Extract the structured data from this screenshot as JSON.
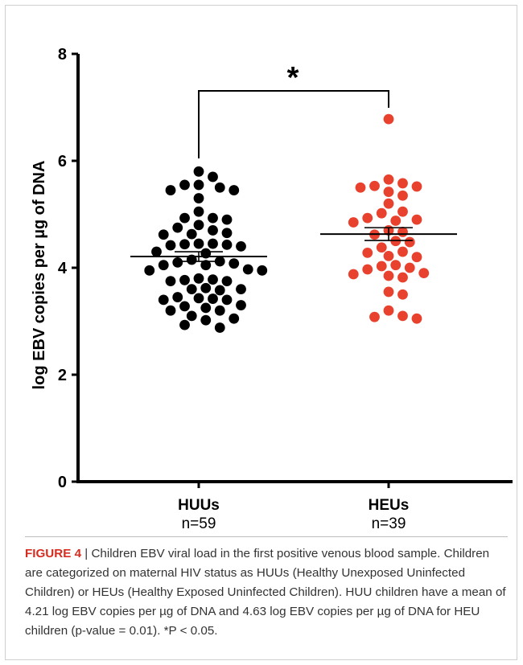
{
  "chart_data": {
    "type": "scatter",
    "ylabel": "log EBV copies per µg of DNA",
    "ylim": [
      0,
      8
    ],
    "yticks": [
      0,
      2,
      4,
      6,
      8
    ],
    "significance": "*",
    "groups": [
      {
        "name": "HUUs",
        "n_label": "n=59",
        "color": "#000000",
        "mean": 4.21,
        "sem": 0.09,
        "points": [
          {
            "dx": 0,
            "y": 5.8
          },
          {
            "dx": 0,
            "y": 5.7
          },
          {
            "dx": 0,
            "y": 5.55
          },
          {
            "dx": 0,
            "y": 5.5
          },
          {
            "dx": 0,
            "y": 5.45
          },
          {
            "dx": 0,
            "y": 5.45
          },
          {
            "dx": 0,
            "y": 5.3
          },
          {
            "dx": 0,
            "y": 5.05
          },
          {
            "dx": 0,
            "y": 4.93
          },
          {
            "dx": 0,
            "y": 4.93
          },
          {
            "dx": 0,
            "y": 4.9
          },
          {
            "dx": 0,
            "y": 4.8
          },
          {
            "dx": 0,
            "y": 4.75
          },
          {
            "dx": 0,
            "y": 4.7
          },
          {
            "dx": 0,
            "y": 4.65
          },
          {
            "dx": 0,
            "y": 4.63
          },
          {
            "dx": 0,
            "y": 4.62
          },
          {
            "dx": 0,
            "y": 4.45
          },
          {
            "dx": 0,
            "y": 4.45
          },
          {
            "dx": 0,
            "y": 4.44
          },
          {
            "dx": 0,
            "y": 4.43
          },
          {
            "dx": 0,
            "y": 4.42
          },
          {
            "dx": 0,
            "y": 4.4
          },
          {
            "dx": 0,
            "y": 4.3
          },
          {
            "dx": 0,
            "y": 4.27
          },
          {
            "dx": 0,
            "y": 4.15
          },
          {
            "dx": 0,
            "y": 4.12
          },
          {
            "dx": 0,
            "y": 4.1
          },
          {
            "dx": 0,
            "y": 4.08
          },
          {
            "dx": 0,
            "y": 4.05
          },
          {
            "dx": 0,
            "y": 4.05
          },
          {
            "dx": 0,
            "y": 3.97
          },
          {
            "dx": 0,
            "y": 3.95
          },
          {
            "dx": 0,
            "y": 3.95
          },
          {
            "dx": 0,
            "y": 3.8
          },
          {
            "dx": 0,
            "y": 3.78
          },
          {
            "dx": 0,
            "y": 3.77
          },
          {
            "dx": 0,
            "y": 3.75
          },
          {
            "dx": 0,
            "y": 3.75
          },
          {
            "dx": 0,
            "y": 3.62
          },
          {
            "dx": 0,
            "y": 3.6
          },
          {
            "dx": 0,
            "y": 3.6
          },
          {
            "dx": 0,
            "y": 3.58
          },
          {
            "dx": 0,
            "y": 3.45
          },
          {
            "dx": 0,
            "y": 3.43
          },
          {
            "dx": 0,
            "y": 3.42
          },
          {
            "dx": 0,
            "y": 3.4
          },
          {
            "dx": 0,
            "y": 3.4
          },
          {
            "dx": 0,
            "y": 3.3
          },
          {
            "dx": 0,
            "y": 3.28
          },
          {
            "dx": 0,
            "y": 3.25
          },
          {
            "dx": 0,
            "y": 3.2
          },
          {
            "dx": 0,
            "y": 3.2
          },
          {
            "dx": 0,
            "y": 3.1
          },
          {
            "dx": 0,
            "y": 3.05
          },
          {
            "dx": 0,
            "y": 3.02
          },
          {
            "dx": 0,
            "y": 2.93
          },
          {
            "dx": 0,
            "y": 2.88
          },
          {
            "dx": 0,
            "y": 5.55
          }
        ]
      },
      {
        "name": "HEUs",
        "n_label": "n=39",
        "color": "#e8412d",
        "mean": 4.63,
        "sem": 0.12,
        "points": [
          {
            "dx": 0,
            "y": 6.78
          },
          {
            "dx": 0,
            "y": 5.65
          },
          {
            "dx": 0,
            "y": 5.58
          },
          {
            "dx": 0,
            "y": 5.53
          },
          {
            "dx": 0,
            "y": 5.52
          },
          {
            "dx": 0,
            "y": 5.5
          },
          {
            "dx": 0,
            "y": 5.42
          },
          {
            "dx": 0,
            "y": 5.35
          },
          {
            "dx": 0,
            "y": 5.2
          },
          {
            "dx": 0,
            "y": 5.05
          },
          {
            "dx": 0,
            "y": 5.02
          },
          {
            "dx": 0,
            "y": 4.93
          },
          {
            "dx": 0,
            "y": 4.9
          },
          {
            "dx": 0,
            "y": 4.88
          },
          {
            "dx": 0,
            "y": 4.85
          },
          {
            "dx": 0,
            "y": 4.7
          },
          {
            "dx": 0,
            "y": 4.67
          },
          {
            "dx": 0,
            "y": 4.62
          },
          {
            "dx": 0,
            "y": 4.5
          },
          {
            "dx": 0,
            "y": 4.48
          },
          {
            "dx": 0,
            "y": 4.38
          },
          {
            "dx": 0,
            "y": 4.3
          },
          {
            "dx": 0,
            "y": 4.28
          },
          {
            "dx": 0,
            "y": 4.22
          },
          {
            "dx": 0,
            "y": 4.2
          },
          {
            "dx": 0,
            "y": 4.05
          },
          {
            "dx": 0,
            "y": 4.03
          },
          {
            "dx": 0,
            "y": 4.0
          },
          {
            "dx": 0,
            "y": 3.97
          },
          {
            "dx": 0,
            "y": 3.88
          },
          {
            "dx": 0,
            "y": 3.85
          },
          {
            "dx": 0,
            "y": 3.82
          },
          {
            "dx": 0,
            "y": 3.55
          },
          {
            "dx": 0,
            "y": 3.5
          },
          {
            "dx": 0,
            "y": 3.2
          },
          {
            "dx": 0,
            "y": 3.1
          },
          {
            "dx": 0,
            "y": 3.08
          },
          {
            "dx": 0,
            "y": 3.05
          },
          {
            "dx": 0,
            "y": 3.9
          }
        ]
      }
    ]
  },
  "caption": {
    "label": "FIGURE 4",
    "separator": " | ",
    "text": "Children EBV viral load in the first positive venous blood sample. Children are categorized on maternal HIV status as HUUs (Healthy Unexposed Uninfected Children) or HEUs (Healthy Exposed Uninfected Children). HUU children have a mean of 4.21 log EBV copies per µg of DNA and 4.63 log EBV copies per µg of DNA for HEU children (p-value = 0.01). *P < 0.05."
  }
}
